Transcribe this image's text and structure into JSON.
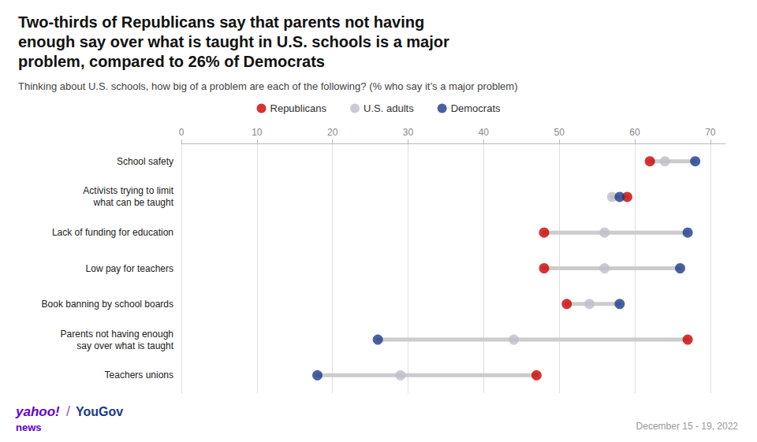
{
  "chart_data": {
    "type": "dumbbell",
    "orientation": "horizontal",
    "title": "Two-thirds of Republicans say that parents not having\nenough say over what is taught in U.S. schools is a major\nproblem, compared to 26% of Democrats",
    "subtitle": "Thinking about U.S. schools, how big of a problem are each of the following? (% who say it’s a major problem)",
    "categories": [
      "School safety",
      "Activists trying to limit\nwhat can be taught",
      "Lack of funding for education",
      "Low pay for teachers",
      "Book banning by school boards",
      "Parents not having enough\nsay over what is taught",
      "Teachers unions"
    ],
    "series": [
      {
        "name": "Republicans",
        "color": "#CC0000",
        "values": [
          62,
          59,
          48,
          48,
          51,
          67,
          47
        ]
      },
      {
        "name": "U.S. adults",
        "color": "#BEBEC8",
        "values": [
          64,
          57,
          56,
          56,
          54,
          44,
          29
        ]
      },
      {
        "name": "Democrats",
        "color": "#1A3A8A",
        "values": [
          68,
          58,
          67,
          66,
          58,
          26,
          18
        ]
      }
    ],
    "xlim": [
      0,
      72
    ],
    "xticks": [
      0,
      10,
      20,
      30,
      40,
      50,
      60,
      70
    ],
    "grid": true,
    "legend": "top",
    "annotations": [
      "December 15 - 19, 2022",
      "yahoo!",
      "/",
      "YouGov",
      "news"
    ]
  }
}
